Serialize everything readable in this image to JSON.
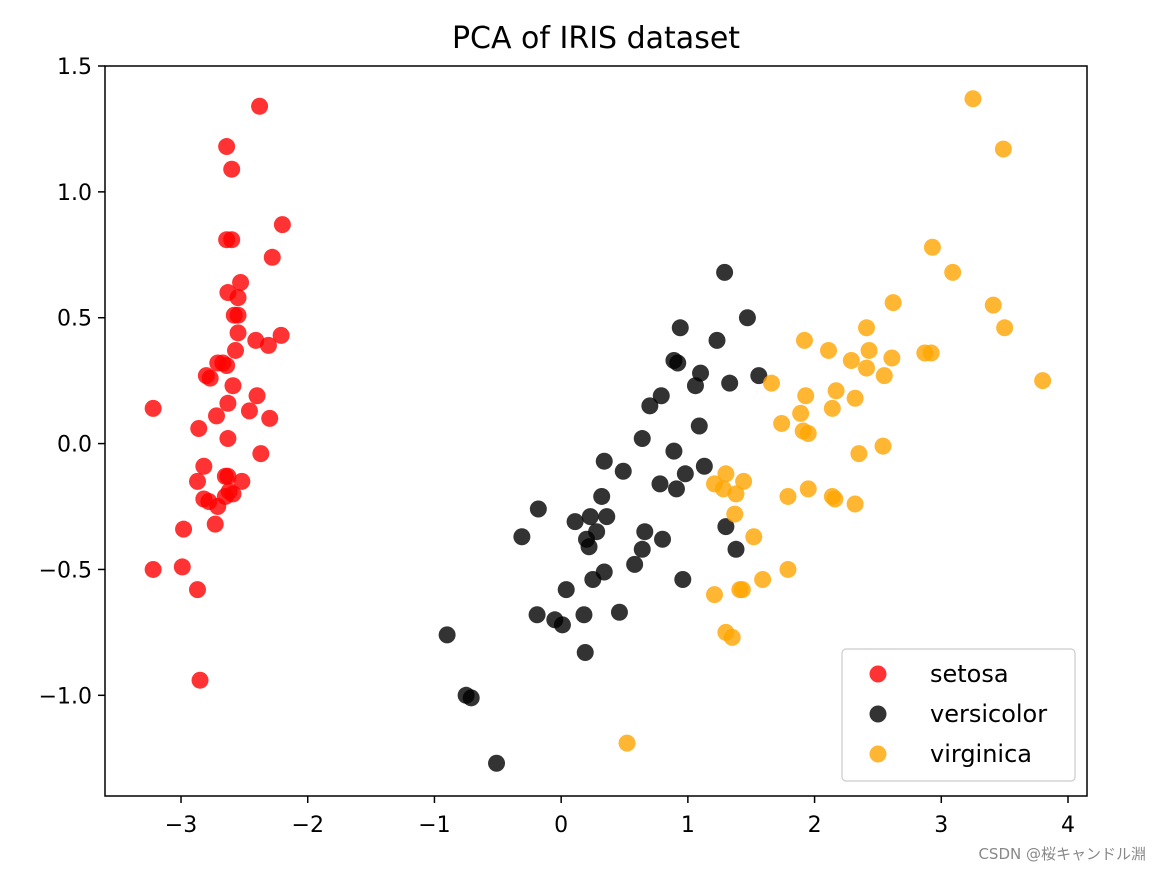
{
  "chart_data": {
    "type": "scatter",
    "title": "PCA of IRIS dataset",
    "xlabel": "",
    "ylabel": "",
    "xlim": [
      -3.6,
      4.15
    ],
    "ylim": [
      -1.4,
      1.5
    ],
    "xticks": [
      -3,
      -2,
      -1,
      0,
      1,
      2,
      3,
      4
    ],
    "xtick_labels": [
      "−3",
      "−2",
      "−1",
      "0",
      "1",
      "2",
      "3",
      "4"
    ],
    "yticks": [
      1.5,
      1.0,
      0.5,
      0.0,
      -0.5,
      -1.0
    ],
    "ytick_labels": [
      "1.5",
      "1.0",
      "0.5",
      "0.0",
      "−0.5",
      "−1.0"
    ],
    "grid": false,
    "legend_position": "lower-right",
    "series": [
      {
        "name": "setosa",
        "color": "#ff0000",
        "points": [
          [
            -2.38,
            1.34
          ],
          [
            -2.64,
            1.18
          ],
          [
            -2.6,
            1.09
          ],
          [
            -2.2,
            0.87
          ],
          [
            -2.64,
            0.81
          ],
          [
            -2.6,
            0.81
          ],
          [
            -2.28,
            0.74
          ],
          [
            -2.53,
            0.64
          ],
          [
            -2.63,
            0.6
          ],
          [
            -2.55,
            0.58
          ],
          [
            -2.58,
            0.51
          ],
          [
            -2.55,
            0.51
          ],
          [
            -2.55,
            0.44
          ],
          [
            -2.21,
            0.43
          ],
          [
            -2.41,
            0.41
          ],
          [
            -2.31,
            0.39
          ],
          [
            -2.57,
            0.37
          ],
          [
            -2.71,
            0.32
          ],
          [
            -2.67,
            0.32
          ],
          [
            -2.64,
            0.31
          ],
          [
            -2.8,
            0.27
          ],
          [
            -2.77,
            0.26
          ],
          [
            -2.59,
            0.23
          ],
          [
            -2.4,
            0.19
          ],
          [
            -2.63,
            0.16
          ],
          [
            -2.46,
            0.13
          ],
          [
            -3.22,
            0.14
          ],
          [
            -2.72,
            0.11
          ],
          [
            -2.3,
            0.1
          ],
          [
            -2.86,
            0.06
          ],
          [
            -2.63,
            0.02
          ],
          [
            -2.37,
            -0.04
          ],
          [
            -2.82,
            -0.09
          ],
          [
            -2.65,
            -0.13
          ],
          [
            -2.63,
            -0.13
          ],
          [
            -2.87,
            -0.15
          ],
          [
            -2.52,
            -0.15
          ],
          [
            -2.62,
            -0.19
          ],
          [
            -2.59,
            -0.2
          ],
          [
            -2.65,
            -0.21
          ],
          [
            -2.82,
            -0.22
          ],
          [
            -2.78,
            -0.23
          ],
          [
            -2.71,
            -0.25
          ],
          [
            -2.73,
            -0.32
          ],
          [
            -2.98,
            -0.34
          ],
          [
            -2.99,
            -0.49
          ],
          [
            -3.22,
            -0.5
          ],
          [
            -2.87,
            -0.58
          ],
          [
            -2.85,
            -0.94
          ]
        ]
      },
      {
        "name": "versicolor",
        "color": "#000000",
        "points": [
          [
            1.29,
            0.68
          ],
          [
            1.47,
            0.5
          ],
          [
            0.94,
            0.46
          ],
          [
            1.23,
            0.41
          ],
          [
            0.89,
            0.33
          ],
          [
            0.92,
            0.32
          ],
          [
            1.1,
            0.28
          ],
          [
            1.56,
            0.27
          ],
          [
            1.33,
            0.24
          ],
          [
            1.06,
            0.23
          ],
          [
            0.79,
            0.19
          ],
          [
            0.7,
            0.15
          ],
          [
            1.09,
            0.07
          ],
          [
            0.64,
            0.02
          ],
          [
            0.89,
            -0.03
          ],
          [
            0.34,
            -0.07
          ],
          [
            1.13,
            -0.09
          ],
          [
            0.49,
            -0.11
          ],
          [
            0.98,
            -0.12
          ],
          [
            0.78,
            -0.16
          ],
          [
            0.91,
            -0.18
          ],
          [
            0.32,
            -0.21
          ],
          [
            -0.18,
            -0.26
          ],
          [
            0.36,
            -0.29
          ],
          [
            0.23,
            -0.29
          ],
          [
            0.11,
            -0.31
          ],
          [
            1.3,
            -0.33
          ],
          [
            0.28,
            -0.35
          ],
          [
            0.66,
            -0.35
          ],
          [
            -0.31,
            -0.37
          ],
          [
            0.2,
            -0.38
          ],
          [
            0.8,
            -0.38
          ],
          [
            0.22,
            -0.41
          ],
          [
            1.38,
            -0.42
          ],
          [
            0.64,
            -0.42
          ],
          [
            0.58,
            -0.48
          ],
          [
            0.34,
            -0.51
          ],
          [
            0.25,
            -0.54
          ],
          [
            0.96,
            -0.54
          ],
          [
            0.04,
            -0.58
          ],
          [
            -0.19,
            -0.68
          ],
          [
            0.18,
            -0.68
          ],
          [
            0.46,
            -0.67
          ],
          [
            -0.05,
            -0.7
          ],
          [
            0.01,
            -0.72
          ],
          [
            -0.9,
            -0.76
          ],
          [
            0.19,
            -0.83
          ],
          [
            -0.75,
            -1.0
          ],
          [
            -0.71,
            -1.01
          ],
          [
            -0.51,
            -1.27
          ]
        ]
      },
      {
        "name": "virginica",
        "color": "#ffa500",
        "points": [
          [
            3.25,
            1.37
          ],
          [
            3.49,
            1.17
          ],
          [
            2.93,
            0.78
          ],
          [
            3.09,
            0.68
          ],
          [
            2.62,
            0.56
          ],
          [
            3.41,
            0.55
          ],
          [
            2.41,
            0.46
          ],
          [
            3.5,
            0.46
          ],
          [
            1.92,
            0.41
          ],
          [
            2.11,
            0.37
          ],
          [
            2.43,
            0.37
          ],
          [
            2.87,
            0.36
          ],
          [
            2.92,
            0.36
          ],
          [
            2.61,
            0.34
          ],
          [
            2.29,
            0.33
          ],
          [
            2.41,
            0.3
          ],
          [
            2.55,
            0.27
          ],
          [
            3.8,
            0.25
          ],
          [
            1.66,
            0.24
          ],
          [
            2.17,
            0.21
          ],
          [
            1.93,
            0.19
          ],
          [
            2.32,
            0.18
          ],
          [
            2.14,
            0.14
          ],
          [
            1.89,
            0.12
          ],
          [
            1.74,
            0.08
          ],
          [
            1.91,
            0.05
          ],
          [
            1.95,
            0.04
          ],
          [
            2.54,
            -0.01
          ],
          [
            2.35,
            -0.04
          ],
          [
            1.3,
            -0.12
          ],
          [
            1.44,
            -0.15
          ],
          [
            1.21,
            -0.16
          ],
          [
            1.28,
            -0.18
          ],
          [
            1.95,
            -0.18
          ],
          [
            1.38,
            -0.2
          ],
          [
            1.79,
            -0.21
          ],
          [
            2.14,
            -0.21
          ],
          [
            2.16,
            -0.22
          ],
          [
            2.32,
            -0.24
          ],
          [
            1.37,
            -0.28
          ],
          [
            1.52,
            -0.37
          ],
          [
            1.79,
            -0.5
          ],
          [
            1.59,
            -0.54
          ],
          [
            1.41,
            -0.58
          ],
          [
            1.43,
            -0.58
          ],
          [
            1.21,
            -0.6
          ],
          [
            1.3,
            -0.75
          ],
          [
            1.35,
            -0.77
          ],
          [
            0.52,
            -1.19
          ]
        ]
      }
    ]
  },
  "watermark": "CSDN @桜キャンドル淵"
}
